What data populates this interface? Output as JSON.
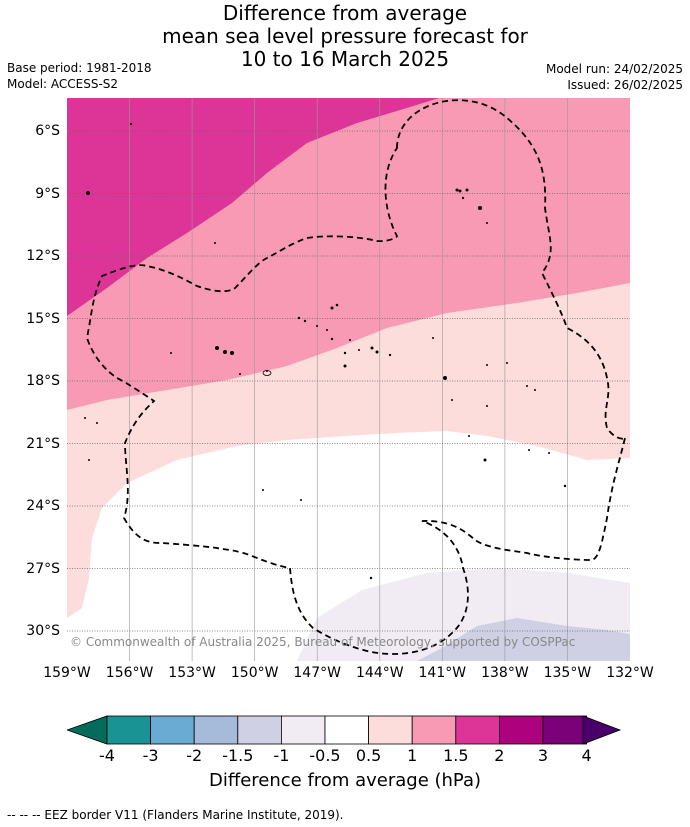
{
  "title": {
    "line1": "Difference from average",
    "line2": "mean sea level pressure forecast for",
    "line3": "10 to 16 March 2025"
  },
  "meta": {
    "base_period": "Base period: 1981-2018",
    "model": "Model: ACCESS-S2",
    "model_run": "Model run: 24/02/2025",
    "issued": "Issued: 26/02/2025"
  },
  "map": {
    "credit": "© Commonwealth of Australia 2025, Bureau of Meteorology, supported by COSPPac",
    "lat_labels": [
      "6°S",
      "9°S",
      "12°S",
      "15°S",
      "18°S",
      "21°S",
      "24°S",
      "27°S",
      "30°S"
    ],
    "lon_labels": [
      "159°W",
      "156°W",
      "153°W",
      "150°W",
      "147°W",
      "144°W",
      "141°W",
      "138°W",
      "135°W",
      "132°W"
    ],
    "colors": {
      "band_1_5_to_2": "#dd3597",
      "band_1_to_1_5": "#f89ab4",
      "band_0_5_to_1": "#fddcdc",
      "band_neg0_5_to_0_5": "#ffffff",
      "band_neg1_to_neg0_5": "#f1ebf3",
      "band_neg1_5_to_neg1": "#cfd0e4"
    }
  },
  "colorbar": {
    "title": "Difference from average (hPa)",
    "ticks": [
      "-4",
      "-3",
      "-2",
      "-1.5",
      "-1",
      "-0.5",
      "0.5",
      "1",
      "1.5",
      "2",
      "3",
      "4"
    ],
    "colors": [
      "#1a9394",
      "#69abd3",
      "#a6bad9",
      "#cfd0e4",
      "#f1ebf3",
      "#ffffff",
      "#fddcdc",
      "#f89ab4",
      "#dd3597",
      "#ae017e",
      "#7a0177"
    ],
    "under_color": "#016c59",
    "over_color": "#49006a"
  },
  "footnote": "-- -- -- EEZ border V11 (Flanders Marine Institute, 2019)."
}
